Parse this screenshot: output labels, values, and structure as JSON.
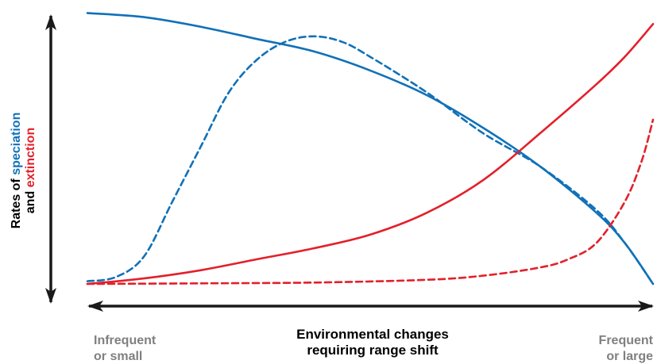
{
  "chart_data": {
    "type": "line",
    "ylabel": {
      "line1_prefix": "Rates of ",
      "line1_speciation": "speciation",
      "line2_prefix": "and ",
      "line2_extinction": "extinction"
    },
    "xlabel": {
      "line1": "Environmental changes",
      "line2": "requiring range shift"
    },
    "x_ticks": {
      "left": [
        "Infrequent",
        "or small"
      ],
      "right": [
        "Frequent",
        "or large"
      ]
    },
    "xlim": [
      0,
      1
    ],
    "ylim": [
      0,
      1
    ],
    "grid": false,
    "legend": "none",
    "colors": {
      "speciation": "#1071b8",
      "extinction": "#e3202a",
      "axis": "#1a1a1a",
      "tick_text": "#808080"
    },
    "series": [
      {
        "kind": "speciation",
        "dashed": false,
        "points": [
          [
            0,
            0.99
          ],
          [
            0.1,
            0.975
          ],
          [
            0.2,
            0.94
          ],
          [
            0.3,
            0.895
          ],
          [
            0.4,
            0.85
          ],
          [
            0.5,
            0.78
          ],
          [
            0.6,
            0.69
          ],
          [
            0.7,
            0.57
          ],
          [
            0.8,
            0.43
          ],
          [
            0.9,
            0.26
          ],
          [
            0.95,
            0.15
          ],
          [
            1.0,
            0.0
          ]
        ]
      },
      {
        "kind": "speciation",
        "dashed": true,
        "points": [
          [
            0,
            0.01
          ],
          [
            0.05,
            0.025
          ],
          [
            0.1,
            0.1
          ],
          [
            0.15,
            0.3
          ],
          [
            0.2,
            0.5
          ],
          [
            0.25,
            0.7
          ],
          [
            0.3,
            0.82
          ],
          [
            0.35,
            0.885
          ],
          [
            0.4,
            0.905
          ],
          [
            0.45,
            0.885
          ],
          [
            0.5,
            0.83
          ],
          [
            0.6,
            0.7
          ],
          [
            0.7,
            0.55
          ],
          [
            0.8,
            0.43
          ],
          [
            0.9,
            0.27
          ],
          [
            0.95,
            0.15
          ],
          [
            1.0,
            0.0
          ]
        ]
      },
      {
        "kind": "extinction",
        "dashed": false,
        "points": [
          [
            0,
            0.0
          ],
          [
            0.1,
            0.02
          ],
          [
            0.2,
            0.05
          ],
          [
            0.3,
            0.09
          ],
          [
            0.4,
            0.13
          ],
          [
            0.5,
            0.18
          ],
          [
            0.6,
            0.26
          ],
          [
            0.7,
            0.38
          ],
          [
            0.8,
            0.55
          ],
          [
            0.9,
            0.73
          ],
          [
            0.95,
            0.83
          ],
          [
            1.0,
            0.95
          ]
        ]
      },
      {
        "kind": "extinction",
        "dashed": true,
        "points": [
          [
            0,
            0.0
          ],
          [
            0.2,
            0.002
          ],
          [
            0.4,
            0.005
          ],
          [
            0.6,
            0.015
          ],
          [
            0.7,
            0.03
          ],
          [
            0.8,
            0.06
          ],
          [
            0.85,
            0.09
          ],
          [
            0.9,
            0.15
          ],
          [
            0.95,
            0.3
          ],
          [
            0.98,
            0.45
          ],
          [
            1.0,
            0.6
          ]
        ]
      }
    ]
  }
}
